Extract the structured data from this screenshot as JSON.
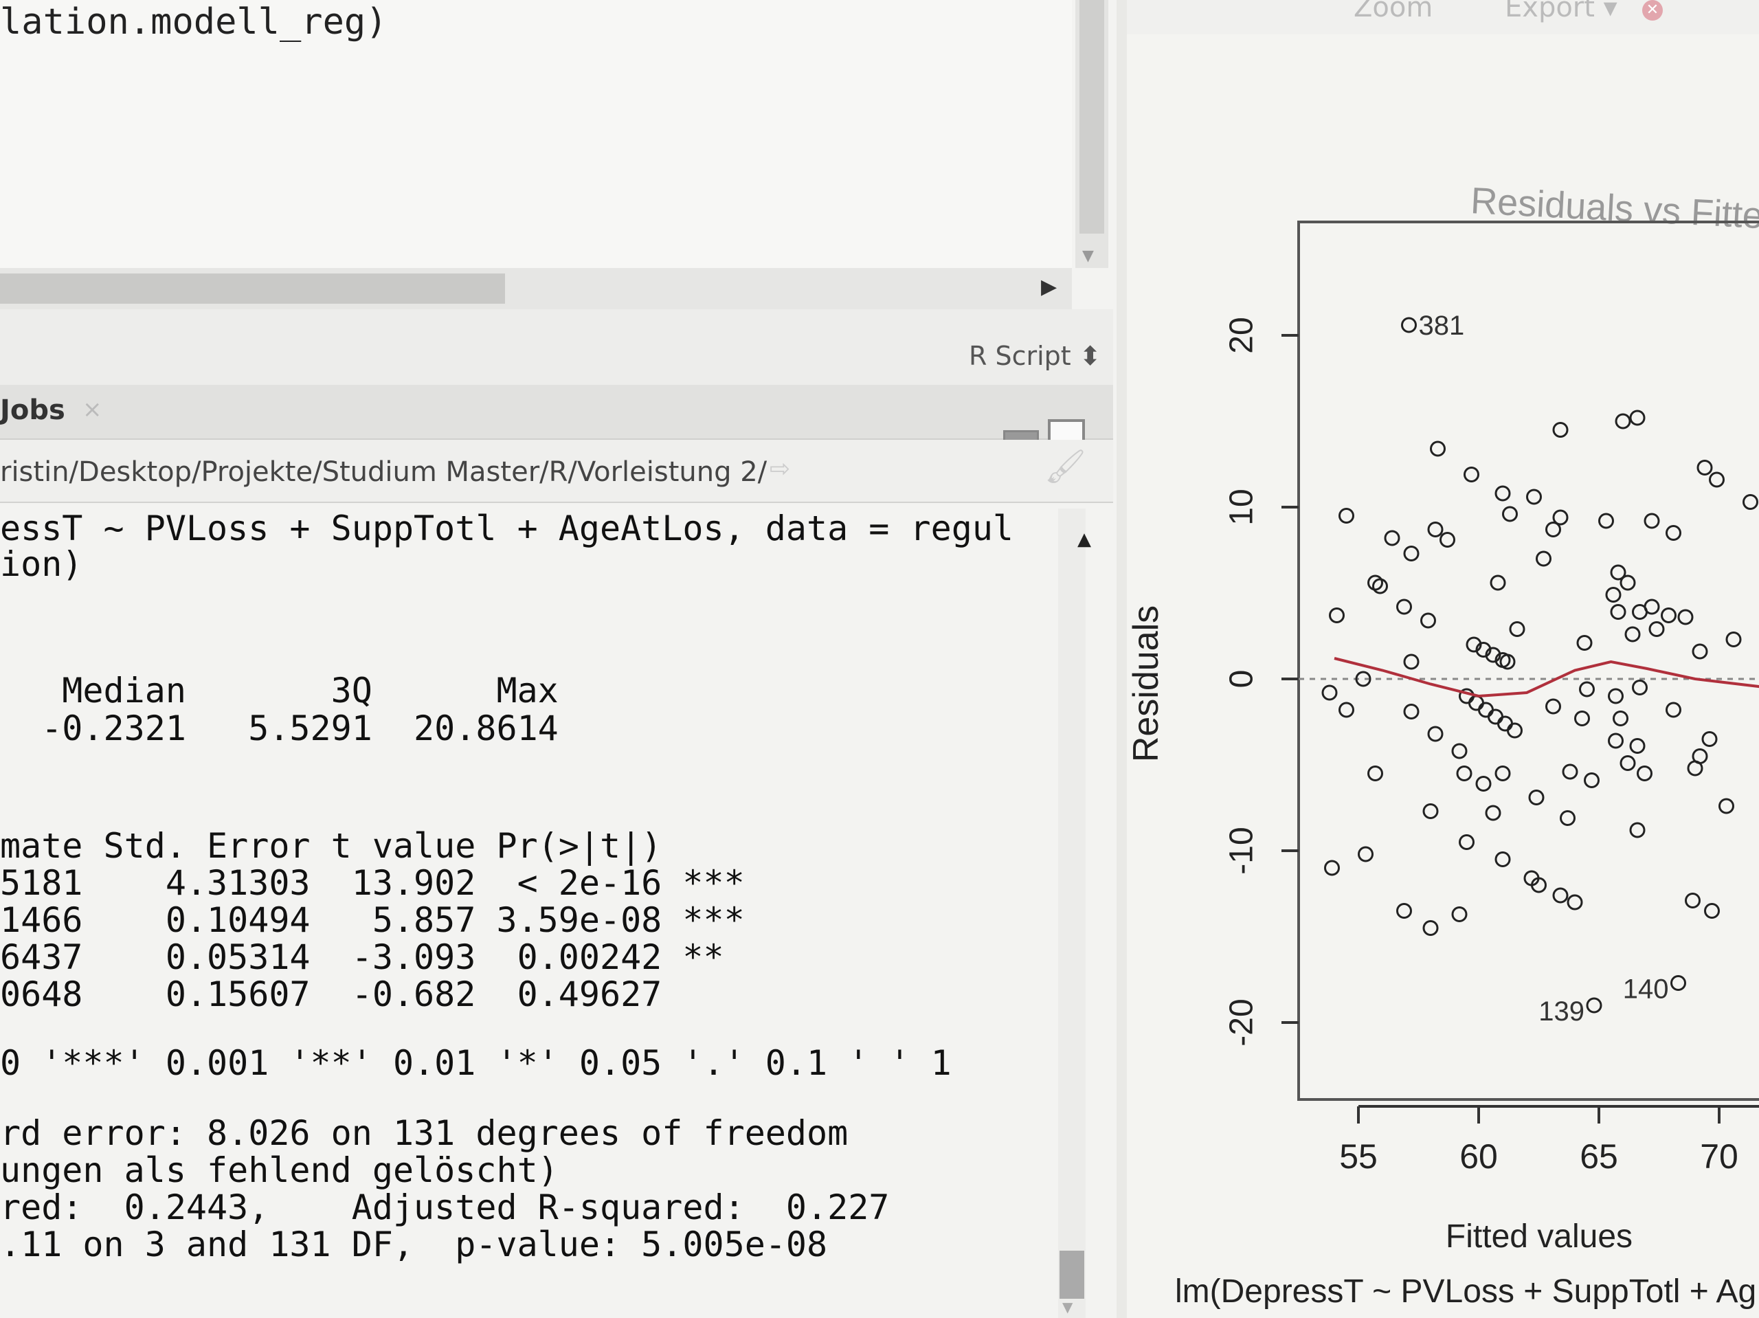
{
  "editor": {
    "code_line": "lation.modell_reg)",
    "script_type": "R Script ⬍"
  },
  "console_pane": {
    "tab_label": "Jobs",
    "tab_close": "×",
    "working_dir": "ristin/Desktop/Projekte/Studium Master/R/Vorleistung 2/",
    "lines": [
      "essT ~ PVLoss + SuppTotl + AgeAtLos, data = regul",
      "ion)",
      "   Median       3Q      Max",
      "  -0.2321   5.5291  20.8614",
      "mate Std. Error t value Pr(>|t|)",
      "5181    4.31303  13.902  < 2e-16 ***",
      "1466    0.10494   5.857 3.59e-08 ***",
      "6437    0.05314  -3.093  0.00242 **",
      "0648    0.15607  -0.682  0.49627",
      "0 '***' 0.001 '**' 0.01 '*' 0.05 '.' 0.1 ' ' 1",
      "rd error: 8.026 on 131 degrees of freedom",
      "ungen als fehlend gelöscht)",
      "red:  0.2443,    Adjusted R-squared:  0.227",
      ".11 on 3 and 131 DF,  p-value: 5.005e-08"
    ]
  },
  "plot_toolbar": {
    "zoom_label": "Zoom",
    "export_label": "Export ▾",
    "remove_icon": "remove-plot-icon"
  },
  "chart_data": {
    "type": "scatter",
    "title": "Residuals vs Fitted",
    "xlabel": "Fitted values",
    "ylabel": "Residuals",
    "subtitle": "lm(DepressT ~ PVLoss + SuppTotl + Ag",
    "xlim": [
      52.8,
      72
    ],
    "ylim": [
      -24,
      26.6
    ],
    "x_ticks": [
      "55",
      "60",
      "65",
      "70"
    ],
    "y_ticks": [
      "20",
      "10",
      "0",
      "-10",
      "-20"
    ],
    "reference_line": 0,
    "smoother_color": "#b0303c",
    "point_color": "#222222",
    "labelled_points": [
      {
        "label": "381",
        "x": 57.1,
        "y": 20.6
      },
      {
        "label": "139",
        "x": 64.8,
        "y": -19.0
      },
      {
        "label": "140",
        "x": 68.3,
        "y": -17.7
      }
    ],
    "points": [
      [
        58.3,
        13.4
      ],
      [
        63.4,
        14.5
      ],
      [
        66.0,
        15.0
      ],
      [
        66.6,
        15.2
      ],
      [
        59.7,
        11.9
      ],
      [
        61.0,
        10.8
      ],
      [
        62.3,
        10.6
      ],
      [
        61.3,
        9.6
      ],
      [
        63.4,
        9.4
      ],
      [
        63.1,
        8.7
      ],
      [
        65.3,
        9.2
      ],
      [
        67.2,
        9.2
      ],
      [
        68.1,
        8.5
      ],
      [
        69.4,
        12.3
      ],
      [
        69.9,
        11.6
      ],
      [
        71.3,
        10.3
      ],
      [
        54.5,
        9.5
      ],
      [
        56.4,
        8.2
      ],
      [
        57.2,
        7.3
      ],
      [
        58.2,
        8.7
      ],
      [
        58.7,
        8.1
      ],
      [
        55.7,
        5.6
      ],
      [
        55.9,
        5.4
      ],
      [
        60.8,
        5.6
      ],
      [
        62.7,
        7.0
      ],
      [
        54.1,
        3.7
      ],
      [
        56.9,
        4.2
      ],
      [
        57.9,
        3.4
      ],
      [
        61.6,
        2.9
      ],
      [
        64.4,
        2.1
      ],
      [
        65.8,
        6.2
      ],
      [
        65.6,
        4.9
      ],
      [
        66.2,
        5.6
      ],
      [
        65.8,
        3.9
      ],
      [
        66.7,
        3.9
      ],
      [
        67.2,
        4.2
      ],
      [
        67.9,
        3.7
      ],
      [
        68.6,
        3.6
      ],
      [
        66.4,
        2.6
      ],
      [
        67.4,
        2.9
      ],
      [
        69.2,
        1.6
      ],
      [
        70.6,
        2.3
      ],
      [
        59.8,
        2.0
      ],
      [
        60.2,
        1.7
      ],
      [
        60.6,
        1.4
      ],
      [
        61.0,
        1.1
      ],
      [
        61.2,
        1.0
      ],
      [
        57.2,
        1.0
      ],
      [
        55.2,
        0.0
      ],
      [
        53.8,
        -0.8
      ],
      [
        54.5,
        -1.8
      ],
      [
        57.2,
        -1.9
      ],
      [
        58.2,
        -3.2
      ],
      [
        59.2,
        -4.2
      ],
      [
        59.5,
        -1.0
      ],
      [
        59.9,
        -1.4
      ],
      [
        60.3,
        -1.8
      ],
      [
        60.7,
        -2.2
      ],
      [
        61.1,
        -2.6
      ],
      [
        61.5,
        -3.0
      ],
      [
        63.1,
        -1.6
      ],
      [
        64.5,
        -0.6
      ],
      [
        65.7,
        -1.0
      ],
      [
        64.3,
        -2.3
      ],
      [
        65.9,
        -2.3
      ],
      [
        66.7,
        -0.5
      ],
      [
        68.1,
        -1.8
      ],
      [
        65.7,
        -3.6
      ],
      [
        66.6,
        -3.9
      ],
      [
        66.2,
        -4.9
      ],
      [
        66.9,
        -5.5
      ],
      [
        69.6,
        -3.5
      ],
      [
        69.2,
        -4.5
      ],
      [
        69.0,
        -5.2
      ],
      [
        63.8,
        -5.4
      ],
      [
        64.7,
        -5.9
      ],
      [
        55.7,
        -5.5
      ],
      [
        59.4,
        -5.5
      ],
      [
        60.2,
        -6.1
      ],
      [
        61.0,
        -5.5
      ],
      [
        62.4,
        -6.9
      ],
      [
        63.7,
        -8.1
      ],
      [
        58.0,
        -7.7
      ],
      [
        60.6,
        -7.8
      ],
      [
        59.5,
        -9.5
      ],
      [
        61.0,
        -10.5
      ],
      [
        66.6,
        -8.8
      ],
      [
        70.3,
        -7.4
      ],
      [
        53.9,
        -11.0
      ],
      [
        55.3,
        -10.2
      ],
      [
        62.2,
        -11.6
      ],
      [
        62.5,
        -12.0
      ],
      [
        63.4,
        -12.6
      ],
      [
        64.0,
        -13.0
      ],
      [
        56.9,
        -13.5
      ],
      [
        58.0,
        -14.5
      ],
      [
        59.2,
        -13.7
      ],
      [
        68.9,
        -12.9
      ],
      [
        69.7,
        -13.5
      ]
    ],
    "smoother": [
      [
        54,
        1.2
      ],
      [
        56,
        0.5
      ],
      [
        58,
        -0.3
      ],
      [
        60,
        -1.0
      ],
      [
        62,
        -0.8
      ],
      [
        64,
        0.5
      ],
      [
        65.5,
        1.0
      ],
      [
        67,
        0.6
      ],
      [
        69,
        0.0
      ],
      [
        72,
        -0.5
      ]
    ]
  }
}
